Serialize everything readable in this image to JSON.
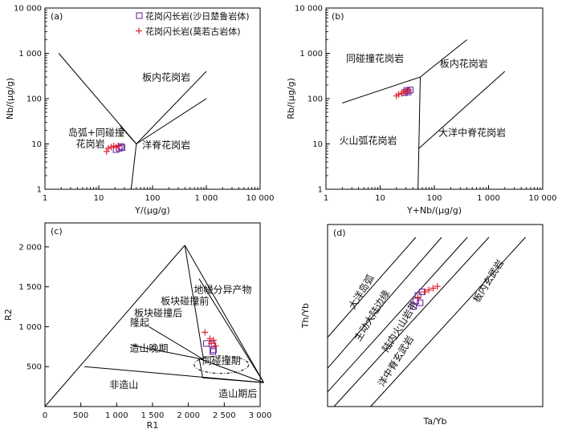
{
  "colors": {
    "sq": "#7030a0",
    "plus": "#e02030",
    "axis": "#000000"
  },
  "legend": {
    "square_label": "花岗闪长岩(沙日楚鲁岩体)",
    "plus_label": "花岗闪长岩(莫若古岩体)"
  },
  "chart_data": [
    {
      "id": "a",
      "type": "scatter",
      "panel_label": "(a)",
      "xlabel": "Y/(μg/g)",
      "ylabel": "Nb/(μg/g)",
      "xscale": "log",
      "yscale": "log",
      "xlim": [
        1,
        10000
      ],
      "ylim": [
        1,
        10000
      ],
      "xticks": [
        1,
        10,
        100,
        1000,
        10000
      ],
      "yticks": [
        1,
        10,
        100,
        1000,
        10000
      ],
      "xtick_labels": [
        "1",
        "10",
        "100",
        "1 000",
        "10 000"
      ],
      "ytick_labels": [
        "1",
        "10",
        "100",
        "1 000",
        "10 000"
      ],
      "fields": [
        {
          "text": "板内花岗岩",
          "x": 180,
          "y": 250
        },
        {
          "text": "岛弧+同碰撞",
          "x": 9,
          "y": 15
        },
        {
          "text": "花岗岩",
          "x": 7,
          "y": 8.5
        },
        {
          "text": "洋脊花岗岩",
          "x": 180,
          "y": 8
        }
      ],
      "boundaries": [
        [
          [
            1.8,
            1000
          ],
          [
            50,
            10
          ]
        ],
        [
          [
            50,
            10
          ],
          [
            40,
            1
          ]
        ],
        [
          [
            50,
            10
          ],
          [
            1000,
            400
          ]
        ],
        [
          [
            25,
            25
          ],
          [
            50,
            10
          ]
        ],
        [
          [
            50,
            10
          ],
          [
            1000,
            100
          ]
        ]
      ],
      "series": [
        {
          "marker": "square",
          "x": [
            21,
            24,
            26,
            27
          ],
          "y": [
            7.5,
            8,
            8.8,
            8.3
          ]
        },
        {
          "marker": "plus",
          "x": [
            14,
            15,
            17,
            19,
            21,
            23
          ],
          "y": [
            6.8,
            8,
            8.5,
            9,
            8.5,
            9
          ]
        }
      ]
    },
    {
      "id": "b",
      "type": "scatter",
      "panel_label": "(b)",
      "xlabel": "Y+Nb/(μg/g)",
      "ylabel": "Rb/(μg/g)",
      "xscale": "log",
      "yscale": "log",
      "xlim": [
        1,
        10000
      ],
      "ylim": [
        1,
        10000
      ],
      "xticks": [
        1,
        10,
        100,
        1000,
        10000
      ],
      "yticks": [
        1,
        10,
        100,
        1000,
        10000
      ],
      "xtick_labels": [
        "1",
        "10",
        "100",
        "1 000",
        "10 000"
      ],
      "ytick_labels": [
        "1",
        "10",
        "100",
        "1 000",
        "10 000"
      ],
      "fields": [
        {
          "text": "同碰撞花岗岩",
          "x": 8,
          "y": 650
        },
        {
          "text": "板内花岗岩",
          "x": 350,
          "y": 500
        },
        {
          "text": "火山弧花岗岩",
          "x": 6,
          "y": 10
        },
        {
          "text": "大洋中脊花岗岩",
          "x": 500,
          "y": 15
        }
      ],
      "boundaries": [
        [
          [
            2,
            80
          ],
          [
            55,
            300
          ]
        ],
        [
          [
            55,
            300
          ],
          [
            400,
            2000
          ]
        ],
        [
          [
            55,
            300
          ],
          [
            50,
            1
          ]
        ],
        [
          [
            52,
            8
          ],
          [
            2000,
            400
          ]
        ]
      ],
      "series": [
        {
          "marker": "square",
          "x": [
            28,
            31,
            33,
            36
          ],
          "y": [
            135,
            150,
            140,
            155
          ]
        },
        {
          "marker": "plus",
          "x": [
            20,
            22,
            25,
            27,
            30,
            33
          ],
          "y": [
            115,
            125,
            130,
            140,
            145,
            150
          ]
        }
      ]
    },
    {
      "id": "c",
      "type": "scatter",
      "panel_label": "(c)",
      "xlabel": "R1",
      "ylabel": "R2",
      "xscale": "linear",
      "yscale": "linear",
      "xlim": [
        0,
        3000
      ],
      "ylim": [
        0,
        2300
      ],
      "xticks": [
        0,
        500,
        1000,
        1500,
        2000,
        2500,
        3000
      ],
      "yticks": [
        500,
        1000,
        1500,
        2000
      ],
      "xtick_labels": [
        "0",
        "500",
        "1 000",
        "1 500",
        "2 000",
        "2 500",
        "3 000"
      ],
      "ytick_labels": [
        "500",
        "1 000",
        "1 500",
        "2 000"
      ],
      "fields": [
        {
          "text": "板块碰撞前",
          "x": 1950,
          "y": 1280
        },
        {
          "text": "地幔分异产物",
          "x": 2480,
          "y": 1420
        },
        {
          "text": "板块碰撞后",
          "x": 1580,
          "y": 1130
        },
        {
          "text": "隆起",
          "x": 1320,
          "y": 1010
        },
        {
          "text": "造山晚期",
          "x": 1450,
          "y": 690
        },
        {
          "text": "同碰撞期",
          "x": 2460,
          "y": 530
        },
        {
          "text": "非造山",
          "x": 1100,
          "y": 230
        },
        {
          "text": "造山期后",
          "x": 2690,
          "y": 120
        }
      ],
      "boundaries": [
        [
          [
            0,
            0
          ],
          [
            1950,
            2020
          ]
        ],
        [
          [
            1950,
            2020
          ],
          [
            3050,
            300
          ]
        ],
        [
          [
            1950,
            2020
          ],
          [
            2210,
            590
          ]
        ],
        [
          [
            1450,
            1000
          ],
          [
            2210,
            590
          ]
        ],
        [
          [
            1200,
            770
          ],
          [
            2210,
            590
          ]
        ],
        [
          [
            550,
            500
          ],
          [
            3050,
            300
          ]
        ],
        [
          [
            2150,
            600
          ],
          [
            2200,
            360
          ]
        ],
        [
          [
            2200,
            360
          ],
          [
            3050,
            300
          ]
        ],
        [
          [
            2150,
            600
          ],
          [
            3050,
            300
          ]
        ],
        [
          [
            2150,
            1600
          ],
          [
            3050,
            300
          ]
        ]
      ],
      "dashed_ellipse": {
        "cx": 2460,
        "cy": 525,
        "rx": 380,
        "ry": 110
      },
      "series": [
        {
          "marker": "square",
          "x": [
            2250,
            2330,
            2350,
            2340
          ],
          "y": [
            790,
            780,
            710,
            690
          ]
        },
        {
          "marker": "plus",
          "x": [
            2230,
            2300,
            2350,
            2320,
            2380
          ],
          "y": [
            930,
            850,
            830,
            790,
            760
          ]
        }
      ]
    },
    {
      "id": "d",
      "type": "scatter",
      "panel_label": "(d)",
      "xlabel": "Ta/Yb",
      "ylabel": "Th/Yb",
      "xscale": "linear",
      "yscale": "linear",
      "xlim": [
        0,
        1
      ],
      "ylim": [
        0,
        1
      ],
      "fields": [
        {
          "text": "大洋岛弧",
          "x": 0.17,
          "y": 0.62,
          "rotate": -58
        },
        {
          "text": "主动大陆边缘",
          "x": 0.22,
          "y": 0.49,
          "rotate": -58
        },
        {
          "text": "陆内火山岩带",
          "x": 0.35,
          "y": 0.43,
          "rotate": -58
        },
        {
          "text": "洋中脊玄武岩",
          "x": 0.33,
          "y": 0.24,
          "rotate": -58
        },
        {
          "text": "板内玄武岩",
          "x": 0.76,
          "y": 0.68,
          "rotate": -58
        }
      ],
      "boundaries": [
        [
          [
            0.0,
            0.38
          ],
          [
            0.41,
            0.93
          ]
        ],
        [
          [
            0.0,
            0.21
          ],
          [
            0.53,
            0.93
          ]
        ],
        [
          [
            0.0,
            0.08
          ],
          [
            0.65,
            0.93
          ]
        ],
        [
          [
            0.03,
            0.0
          ],
          [
            0.75,
            0.93
          ]
        ],
        [
          [
            0.2,
            0.0
          ],
          [
            0.92,
            0.93
          ]
        ]
      ],
      "series": [
        {
          "marker": "square",
          "x": [
            0.4,
            0.41,
            0.42,
            0.44,
            0.43
          ],
          "y": [
            0.55,
            0.58,
            0.61,
            0.63,
            0.57
          ]
        },
        {
          "marker": "plus",
          "x": [
            0.42,
            0.45,
            0.47,
            0.49,
            0.51
          ],
          "y": [
            0.6,
            0.63,
            0.64,
            0.65,
            0.66
          ]
        }
      ]
    }
  ]
}
